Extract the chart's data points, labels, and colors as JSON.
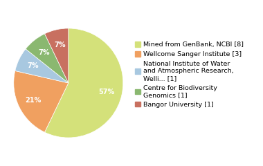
{
  "slices": [
    8,
    3,
    1,
    1,
    1
  ],
  "legend_labels": [
    "Mined from GenBank, NCBI [8]",
    "Wellcome Sanger Institute [3]",
    "National Institute of Water\nand Atmospheric Research,\nWelli... [1]",
    "Centre for Biodiversity\nGenomics [1]",
    "Bangor University [1]"
  ],
  "colors": [
    "#d4e17a",
    "#f0a060",
    "#a8c8e0",
    "#8ab870",
    "#c87060"
  ],
  "startangle": 90,
  "background_color": "#ffffff",
  "text_color": "#ffffff",
  "pct_fontsize": 7.0,
  "legend_fontsize": 6.8
}
